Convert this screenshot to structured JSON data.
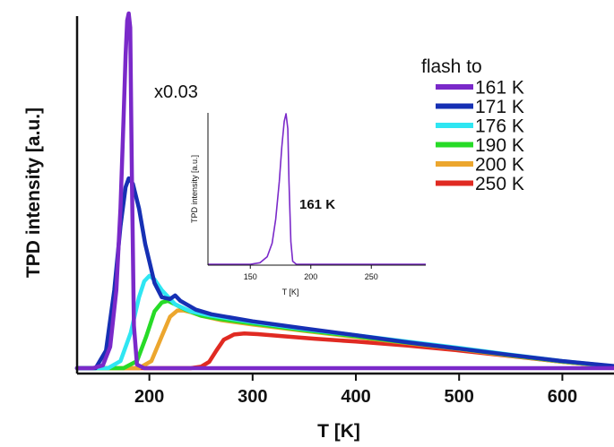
{
  "chart_data": [
    {
      "type": "line",
      "xlabel": "T [K]",
      "ylabel": "TPD intensity [a.u.]",
      "xlim": [
        130,
        650
      ],
      "ylim": [
        0,
        1.0
      ],
      "xticks": [
        200,
        300,
        400,
        500,
        600
      ],
      "yticks_shown": false,
      "scale_annotation": "x0.03",
      "legend": {
        "title": "flash to",
        "placement": "top-right"
      },
      "series": [
        {
          "name": "161 K",
          "color": "#7a29c9",
          "points": [
            [
              130,
              0.0
            ],
            [
              145,
              0.0
            ],
            [
              155,
              0.008
            ],
            [
              162,
              0.06
            ],
            [
              168,
              0.22
            ],
            [
              172,
              0.45
            ],
            [
              175,
              0.7
            ],
            [
              177,
              0.88
            ],
            [
              178.5,
              0.98
            ],
            [
              180,
              1.0
            ],
            [
              181.5,
              0.96
            ],
            [
              183,
              0.55
            ],
            [
              185,
              0.12
            ],
            [
              188,
              0.01
            ],
            [
              195,
              0.0
            ],
            [
              650,
              0.0
            ]
          ]
        },
        {
          "name": "171 K",
          "color": "#1630b4",
          "points": [
            [
              130,
              0.0
            ],
            [
              148,
              0.0
            ],
            [
              158,
              0.05
            ],
            [
              166,
              0.22
            ],
            [
              172,
              0.4
            ],
            [
              177,
              0.51
            ],
            [
              180,
              0.535
            ],
            [
              184,
              0.52
            ],
            [
              190,
              0.45
            ],
            [
              196,
              0.35
            ],
            [
              205,
              0.24
            ],
            [
              212,
              0.2
            ],
            [
              220,
              0.195
            ],
            [
              225,
              0.205
            ],
            [
              230,
              0.19
            ],
            [
              245,
              0.165
            ],
            [
              260,
              0.152
            ],
            [
              300,
              0.132
            ],
            [
              350,
              0.112
            ],
            [
              400,
              0.093
            ],
            [
              450,
              0.073
            ],
            [
              500,
              0.055
            ],
            [
              550,
              0.037
            ],
            [
              600,
              0.02
            ],
            [
              650,
              0.006
            ]
          ]
        },
        {
          "name": "176 K",
          "color": "#2fe6f2",
          "points": [
            [
              130,
              0.0
            ],
            [
              160,
              0.0
            ],
            [
              172,
              0.02
            ],
            [
              182,
              0.1
            ],
            [
              190,
              0.2
            ],
            [
              195,
              0.245
            ],
            [
              200,
              0.26
            ],
            [
              205,
              0.25
            ],
            [
              212,
              0.22
            ],
            [
              225,
              0.18
            ],
            [
              240,
              0.16
            ],
            [
              260,
              0.148
            ],
            [
              300,
              0.13
            ],
            [
              350,
              0.11
            ],
            [
              400,
              0.093
            ],
            [
              450,
              0.075
            ],
            [
              500,
              0.057
            ],
            [
              550,
              0.038
            ],
            [
              600,
              0.02
            ],
            [
              650,
              0.005
            ]
          ]
        },
        {
          "name": "190 K",
          "color": "#27db27",
          "points": [
            [
              130,
              0.0
            ],
            [
              175,
              0.0
            ],
            [
              188,
              0.02
            ],
            [
              197,
              0.09
            ],
            [
              205,
              0.16
            ],
            [
              212,
              0.185
            ],
            [
              218,
              0.19
            ],
            [
              225,
              0.18
            ],
            [
              235,
              0.165
            ],
            [
              250,
              0.148
            ],
            [
              270,
              0.138
            ],
            [
              300,
              0.126
            ],
            [
              350,
              0.107
            ],
            [
              400,
              0.09
            ],
            [
              450,
              0.072
            ],
            [
              500,
              0.055
            ],
            [
              550,
              0.036
            ],
            [
              600,
              0.019
            ],
            [
              650,
              0.005
            ]
          ]
        },
        {
          "name": "200 K",
          "color": "#eca62e",
          "points": [
            [
              130,
              0.0
            ],
            [
              190,
              0.0
            ],
            [
              202,
              0.02
            ],
            [
              212,
              0.09
            ],
            [
              220,
              0.145
            ],
            [
              227,
              0.162
            ],
            [
              233,
              0.163
            ],
            [
              240,
              0.158
            ],
            [
              250,
              0.148
            ],
            [
              270,
              0.135
            ],
            [
              300,
              0.123
            ],
            [
              350,
              0.105
            ],
            [
              400,
              0.088
            ],
            [
              450,
              0.071
            ],
            [
              500,
              0.054
            ],
            [
              550,
              0.035
            ],
            [
              600,
              0.018
            ],
            [
              650,
              0.004
            ]
          ]
        },
        {
          "name": "250 K",
          "color": "#e02a22",
          "points": [
            [
              130,
              0.0
            ],
            [
              240,
              0.0
            ],
            [
              250,
              0.004
            ],
            [
              258,
              0.018
            ],
            [
              265,
              0.05
            ],
            [
              272,
              0.08
            ],
            [
              282,
              0.095
            ],
            [
              292,
              0.098
            ],
            [
              305,
              0.096
            ],
            [
              330,
              0.09
            ],
            [
              360,
              0.083
            ],
            [
              400,
              0.075
            ],
            [
              450,
              0.064
            ],
            [
              500,
              0.05
            ],
            [
              550,
              0.034
            ],
            [
              600,
              0.018
            ],
            [
              650,
              0.004
            ]
          ]
        }
      ]
    },
    {
      "type": "line",
      "title": "",
      "xlabel": "T [K]",
      "ylabel": "TPD intensity [a.u.]",
      "xlim": [
        115,
        295
      ],
      "ylim": [
        0,
        1.0
      ],
      "xticks": [
        150,
        200,
        250
      ],
      "annotation": "161 K",
      "series": [
        {
          "color": "#7a29c9",
          "points": [
            [
              115,
              0.0
            ],
            [
              150,
              0.0
            ],
            [
              158,
              0.01
            ],
            [
              164,
              0.05
            ],
            [
              168,
              0.14
            ],
            [
              171,
              0.3
            ],
            [
              174,
              0.55
            ],
            [
              176,
              0.78
            ],
            [
              178,
              0.95
            ],
            [
              179.5,
              1.0
            ],
            [
              181,
              0.9
            ],
            [
              182,
              0.55
            ],
            [
              183.5,
              0.15
            ],
            [
              185,
              0.02
            ],
            [
              188,
              0.0
            ],
            [
              295,
              0.0
            ]
          ]
        }
      ]
    }
  ]
}
